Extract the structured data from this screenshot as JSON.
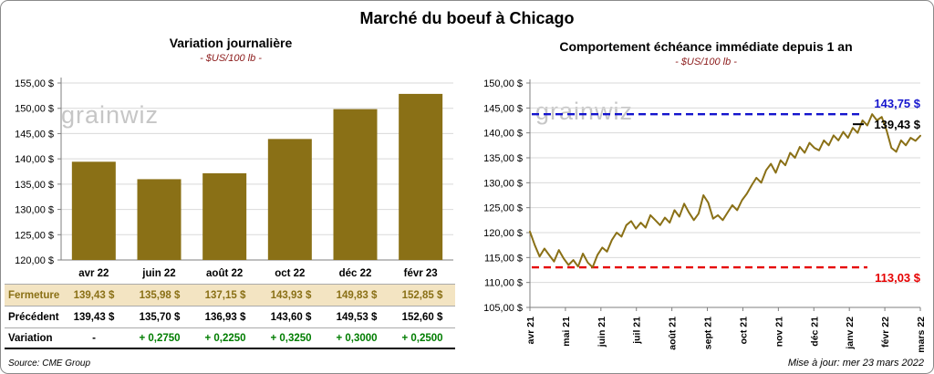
{
  "title": "Marché du boeuf à Chicago",
  "watermark": "grainwiz",
  "chart_data": [
    {
      "type": "bar",
      "title": "Variation journalière",
      "subtitle": "- $US/100 lb -",
      "categories": [
        "avr 22",
        "juin 22",
        "août 22",
        "oct 22",
        "déc 22",
        "févr 23"
      ],
      "values": [
        139.43,
        135.98,
        137.15,
        143.93,
        149.83,
        152.85
      ],
      "ylim": [
        120,
        155
      ],
      "ytick_step": 5,
      "ytick_labels": [
        "120,00 $",
        "125,00 $",
        "130,00 $",
        "135,00 $",
        "140,00 $",
        "145,00 $",
        "150,00 $",
        "155,00 $"
      ],
      "bar_color": "#8a7016",
      "grid": true,
      "legend": "none"
    },
    {
      "type": "line",
      "title": "Comportement échéance immédiate depuis 1 an",
      "subtitle": "- $US/100 lb -",
      "x_labels": [
        "avr 21",
        "mai 21",
        "juin 21",
        "juil 21",
        "août 21",
        "sept 21",
        "oct 21",
        "nov 21",
        "déc 21",
        "janv 22",
        "févr 22",
        "mars 22"
      ],
      "values": [
        120.2,
        117.5,
        115.2,
        116.8,
        115.5,
        114.2,
        116.5,
        114.8,
        113.5,
        114.5,
        113.2,
        115.8,
        114.0,
        113.03,
        115.5,
        117.0,
        116.2,
        118.5,
        120.0,
        119.2,
        121.5,
        122.3,
        120.8,
        122.0,
        121.0,
        123.5,
        122.5,
        121.5,
        123.0,
        122.0,
        124.5,
        123.2,
        125.8,
        124.0,
        122.5,
        123.8,
        127.5,
        126.0,
        122.8,
        123.5,
        122.5,
        124.0,
        125.5,
        124.5,
        126.5,
        127.8,
        129.5,
        131.0,
        130.0,
        132.5,
        133.8,
        132.0,
        134.5,
        133.5,
        136.0,
        135.0,
        137.2,
        136.0,
        138.0,
        137.0,
        136.5,
        138.5,
        137.5,
        139.5,
        138.5,
        140.2,
        139.0,
        141.0,
        140.0,
        142.5,
        141.5,
        143.75,
        142.5,
        143.2,
        140.5,
        137.0,
        136.2,
        138.5,
        137.5,
        139.0,
        138.4,
        139.43
      ],
      "ylim": [
        105,
        150
      ],
      "ytick_step": 5,
      "ytick_labels": [
        "105,00 $",
        "110,00 $",
        "115,00 $",
        "120,00 $",
        "125,00 $",
        "130,00 $",
        "135,00 $",
        "140,00 $",
        "145,00 $",
        "150,00 $"
      ],
      "line_color": "#8a7016",
      "grid": true,
      "legend": "none",
      "annotations": {
        "high": {
          "value": 143.75,
          "label": "143,75 $",
          "color": "#1515cd"
        },
        "last": {
          "value": 139.43,
          "label": "139,43 $",
          "color": "#000000"
        },
        "low": {
          "value": 113.03,
          "label": "113,03 $",
          "color": "#e60000"
        }
      }
    }
  ],
  "table": {
    "rows": [
      {
        "id": "fermeture",
        "label": "Fermeture",
        "values": [
          "139,43 $",
          "135,98 $",
          "137,15 $",
          "143,93 $",
          "149,83 $",
          "152,85 $"
        ]
      },
      {
        "id": "precedent",
        "label": "Précédent",
        "values": [
          "139,43 $",
          "135,70 $",
          "136,93 $",
          "143,60 $",
          "149,53 $",
          "152,60 $"
        ]
      },
      {
        "id": "variation",
        "label": "Variation",
        "values": [
          "-",
          "+ 0,2750",
          "+ 0,2250",
          "+ 0,3250",
          "+ 0,3000",
          "+ 0,2500"
        ]
      }
    ]
  },
  "footer": {
    "source": "Source: CME Group",
    "updated": "Mise à jour: mer 23 mars 2022"
  }
}
